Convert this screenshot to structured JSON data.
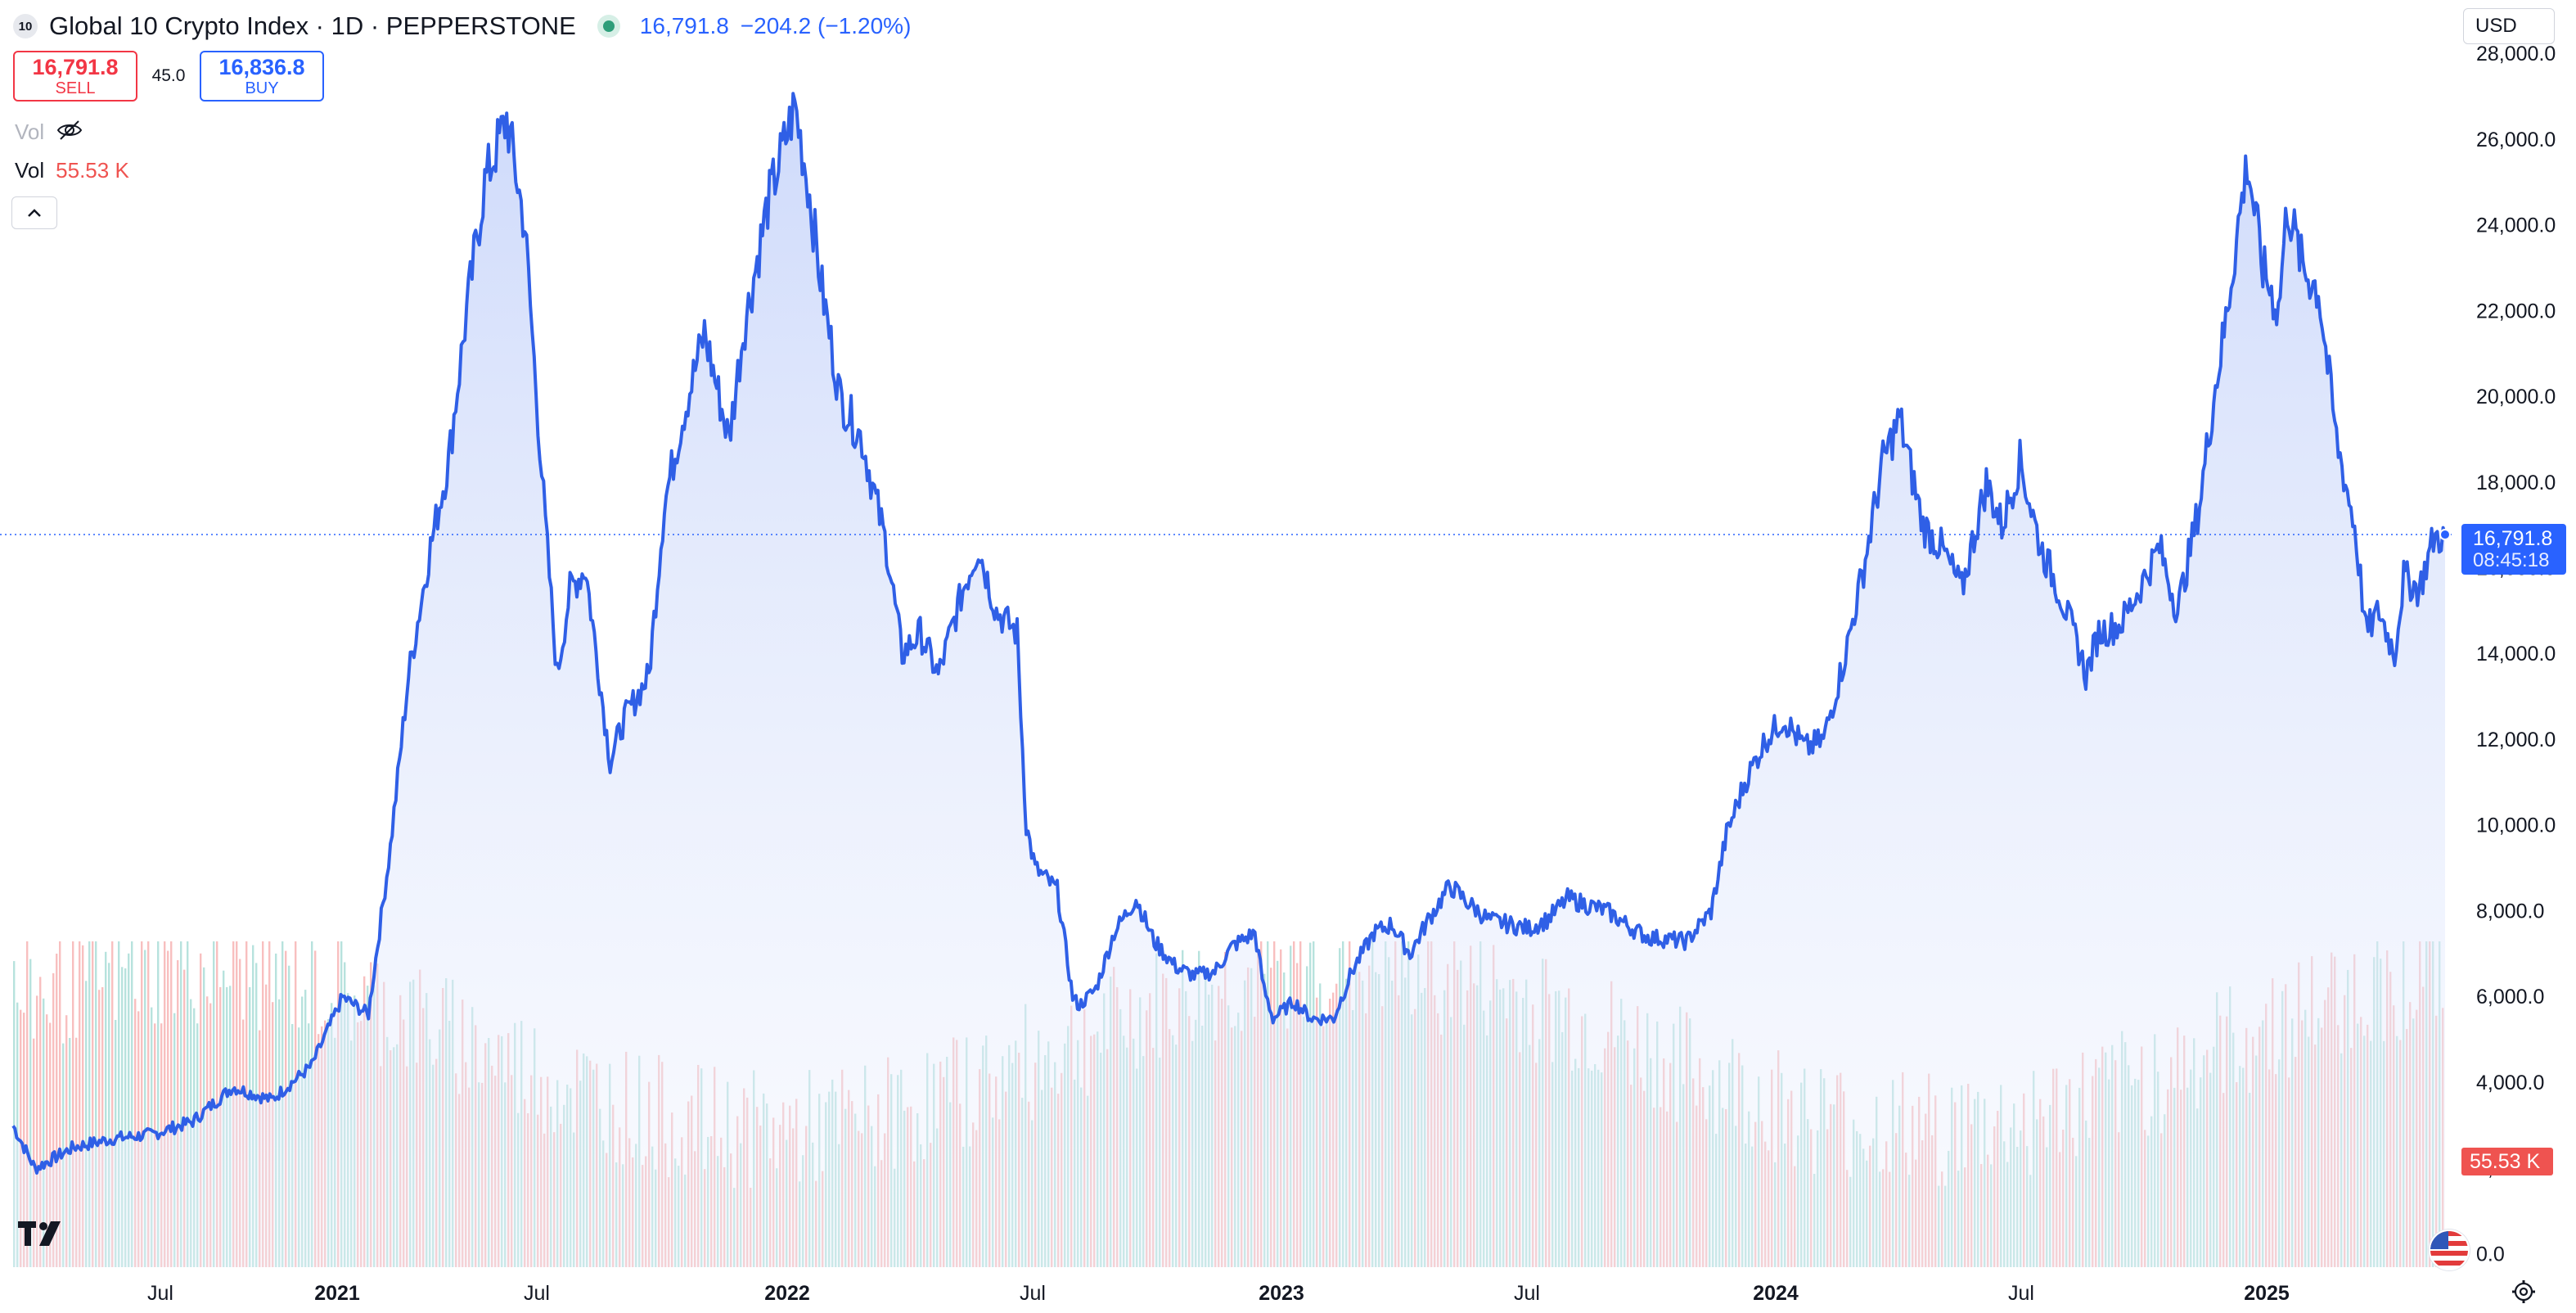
{
  "header": {
    "badge": "10",
    "title": "Global 10 Crypto Index · 1D · PEPPERSTONE",
    "price": "16,791.8",
    "change": "−204.2 (−1.20%)"
  },
  "trade": {
    "sell_price": "16,791.8",
    "sell_label": "SELL",
    "spread": "45.0",
    "buy_price": "16,836.8",
    "buy_label": "BUY"
  },
  "volume_legend": {
    "hidden_label": "Vol",
    "label": "Vol",
    "value": "55.53 K"
  },
  "currency": "USD",
  "last_price": {
    "value": "16,791.8",
    "countdown": "08:45:18"
  },
  "volume_tag": "55.53 K",
  "colors": {
    "line": "#2f5fe6",
    "area_top": "#c9d6fa",
    "vol_up": "#9fd8d1",
    "vol_down": "#f5a9a9",
    "accent": "#2962ff",
    "down": "#f23645"
  },
  "icons": {
    "visibility": "eye-off-icon",
    "collapse": "chevron-up-icon",
    "settings": "gear-icon",
    "logo": "tradingview-logo-icon",
    "flag": "us-flag-icon"
  },
  "chart_data": {
    "type": "area",
    "x_axis": {
      "start": "2020-03-15",
      "end": "2025-05-10",
      "tick_labels": [
        "Jul",
        "2021",
        "Jul",
        "2022",
        "Jul",
        "2023",
        "Jul",
        "2024",
        "Jul",
        "2025"
      ]
    },
    "y_axis": {
      "min": -300,
      "max": 28500,
      "tick_values": [
        0,
        2000,
        4000,
        6000,
        8000,
        10000,
        12000,
        14000,
        16000,
        18000,
        20000,
        22000,
        24000,
        26000,
        28000
      ],
      "tick_labels": [
        "0.0",
        "2,000.0",
        "4,000.0",
        "6,000.0",
        "8,000.0",
        "10,000.0",
        "12,000.0",
        "14,000.0",
        "16,000.0",
        "18,000.0",
        "20,000.0",
        "22,000.0",
        "24,000.0",
        "26,000.0",
        "28,000.0"
      ]
    },
    "last_value": 16791.8,
    "series": [
      {
        "x": [
          "2020-03-15",
          "2020-04-01",
          "2020-05-01",
          "2020-06-01",
          "2020-07-01",
          "2020-08-01",
          "2020-09-01",
          "2020-10-01",
          "2020-11-01",
          "2020-11-25",
          "2020-12-15",
          "2021-01-01",
          "2021-01-15",
          "2021-02-01",
          "2021-02-15",
          "2021-03-01",
          "2021-03-15",
          "2021-04-01",
          "2021-04-15",
          "2021-05-01",
          "2021-05-10",
          "2021-05-20",
          "2021-06-01",
          "2021-06-20",
          "2021-07-01",
          "2021-07-20",
          "2021-08-01",
          "2021-08-15",
          "2021-09-01",
          "2021-09-20",
          "2021-10-01",
          "2021-10-20",
          "2021-11-10",
          "2021-11-20",
          "2021-12-01",
          "2021-12-15",
          "2022-01-01",
          "2022-01-20",
          "2022-02-01",
          "2022-02-15",
          "2022-03-01",
          "2022-03-20",
          "2022-04-01",
          "2022-04-15",
          "2022-05-01",
          "2022-05-08",
          "2022-05-15",
          "2022-06-01",
          "2022-06-13",
          "2022-06-18",
          "2022-07-01",
          "2022-07-15",
          "2022-08-01",
          "2022-08-15",
          "2022-09-01",
          "2022-09-15",
          "2022-10-01",
          "2022-10-15",
          "2022-11-01",
          "2022-11-08",
          "2022-11-15",
          "2022-12-01",
          "2022-12-15",
          "2023-01-01",
          "2023-01-15",
          "2023-02-01",
          "2023-02-15",
          "2023-03-01",
          "2023-03-15",
          "2023-04-01",
          "2023-04-15",
          "2023-05-01",
          "2023-06-01",
          "2023-06-15",
          "2023-07-01",
          "2023-08-01",
          "2023-08-20",
          "2023-09-01",
          "2023-10-01",
          "2023-10-20",
          "2023-11-01",
          "2023-11-15",
          "2023-12-01",
          "2023-12-15",
          "2024-01-01",
          "2024-01-15",
          "2024-02-01",
          "2024-02-15",
          "2024-03-01",
          "2024-03-14",
          "2024-04-01",
          "2024-04-15",
          "2024-05-01",
          "2024-05-20",
          "2024-06-01",
          "2024-06-15",
          "2024-07-01",
          "2024-07-15",
          "2024-08-01",
          "2024-08-05",
          "2024-08-15",
          "2024-09-01",
          "2024-09-15",
          "2024-10-01",
          "2024-10-15",
          "2024-11-01",
          "2024-11-12",
          "2024-11-20",
          "2024-12-01",
          "2024-12-08",
          "2024-12-20",
          "2025-01-01",
          "2025-01-08",
          "2025-01-20",
          "2025-02-01",
          "2025-02-15",
          "2025-03-01",
          "2025-03-10",
          "2025-03-20",
          "2025-04-01",
          "2025-04-08",
          "2025-04-20",
          "2025-05-01",
          "2025-05-10"
        ],
        "y": [
          3000,
          2000,
          2500,
          2700,
          2800,
          3100,
          3900,
          3600,
          4400,
          6000,
          5600,
          9500,
          13500,
          16500,
          18500,
          22000,
          25000,
          26500,
          24000,
          17000,
          13500,
          15500,
          16000,
          11500,
          12500,
          13500,
          17500,
          19500,
          21500,
          19000,
          21500,
          24500,
          26800,
          25000,
          22500,
          20000,
          19000,
          16500,
          14000,
          14500,
          13500,
          15500,
          16500,
          15000,
          14500,
          10000,
          9000,
          8500,
          6000,
          5800,
          6200,
          7500,
          8300,
          7300,
          6700,
          6500,
          6600,
          7200,
          7500,
          6200,
          5500,
          5900,
          5500,
          5500,
          6600,
          7500,
          7700,
          7000,
          7800,
          8600,
          8200,
          7800,
          7600,
          7800,
          8300,
          8000,
          7600,
          7400,
          7300,
          8000,
          9800,
          11000,
          12000,
          12500,
          11800,
          12000,
          14000,
          16000,
          18500,
          19500,
          17000,
          16500,
          15500,
          18000,
          17000,
          18500,
          16500,
          15500,
          14000,
          13500,
          14500,
          14700,
          15500,
          16500,
          15000,
          17500,
          20000,
          21500,
          24000,
          25500,
          23000,
          22000,
          24500,
          23000,
          22500,
          19000,
          17000,
          14500,
          15000,
          14000,
          15800,
          15500,
          16700,
          16792
        ]
      }
    ],
    "volume": {
      "scale_max": 7000,
      "last_value_label": "55.53 K"
    }
  }
}
